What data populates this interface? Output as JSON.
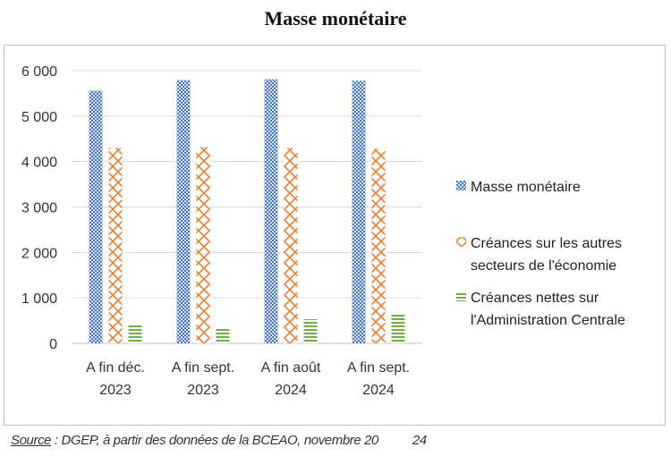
{
  "page": {
    "title": "Masse monétaire",
    "source_label": "Source",
    "source_text": " : DGEP, à partir des données de la BCEAO, novembre 20",
    "source_year_suffix": "24"
  },
  "chart_data": {
    "type": "bar",
    "title": "Masse monétaire",
    "xlabel": "",
    "ylabel": "",
    "ylim": [
      0,
      6000
    ],
    "yticks": [
      0,
      1000,
      2000,
      3000,
      4000,
      5000,
      6000
    ],
    "ytick_labels": [
      "0",
      "1 000",
      "2 000",
      "3 000",
      "4 000",
      "5 000",
      "6 000"
    ],
    "grid": true,
    "legend_position": "right",
    "categories": [
      [
        "A fin déc.",
        "2023"
      ],
      [
        "A fin sept.",
        "2023"
      ],
      [
        "A fin août",
        "2024"
      ],
      [
        "A fin sept.",
        "2024"
      ]
    ],
    "series": [
      {
        "name": "Masse monétaire",
        "legend_lines": [
          "Masse monétaire"
        ],
        "color": "#4472C4",
        "pattern": "dots",
        "values": [
          5560,
          5790,
          5810,
          5780
        ]
      },
      {
        "name": "Créances sur les autres secteurs de l'économie",
        "legend_lines": [
          "Créances sur les autres",
          "secteurs de l'économie"
        ],
        "color": "#ED7D31",
        "pattern": "lattice",
        "values": [
          4300,
          4320,
          4300,
          4280
        ]
      },
      {
        "name": "Créances nettes sur l'Administration Centrale",
        "legend_lines": [
          "Créances nettes sur",
          "l'Administration Centrale"
        ],
        "color": "#70AD47",
        "pattern": "hlines",
        "values": [
          430,
          340,
          530,
          630
        ]
      }
    ]
  }
}
